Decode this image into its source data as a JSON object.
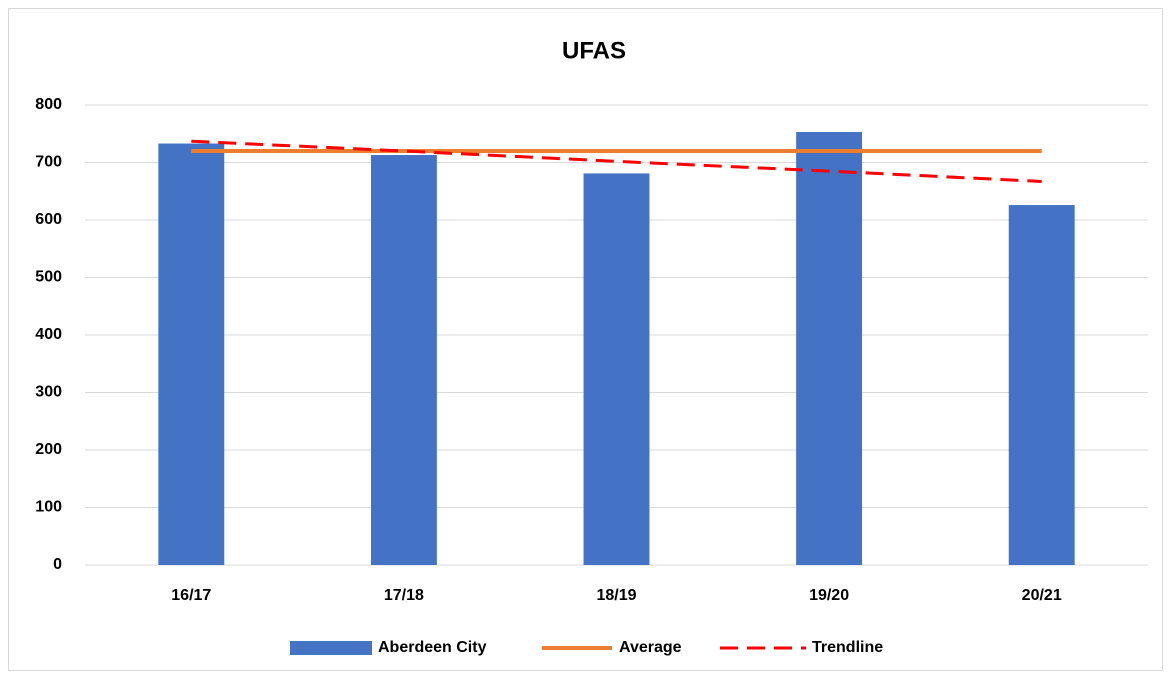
{
  "chart_data": {
    "type": "bar",
    "title": "UFAS",
    "categories": [
      "16/17",
      "17/18",
      "18/19",
      "19/20",
      "20/21"
    ],
    "series": [
      {
        "name": "Aberdeen City",
        "kind": "bar",
        "color": "#4472c4",
        "values": [
          733,
          713,
          681,
          753,
          626
        ]
      },
      {
        "name": "Average",
        "kind": "line",
        "color": "#ed7d31",
        "values": [
          720,
          720,
          720,
          720,
          720
        ]
      },
      {
        "name": "Trendline",
        "kind": "line",
        "dashed": true,
        "color": "#ff0000",
        "values": [
          737,
          720,
          702,
          685,
          667
        ]
      }
    ],
    "ylim": [
      0,
      800
    ],
    "yticks": [
      0,
      100,
      200,
      300,
      400,
      500,
      600,
      700,
      800
    ],
    "grid": true,
    "legend": "bottom"
  }
}
